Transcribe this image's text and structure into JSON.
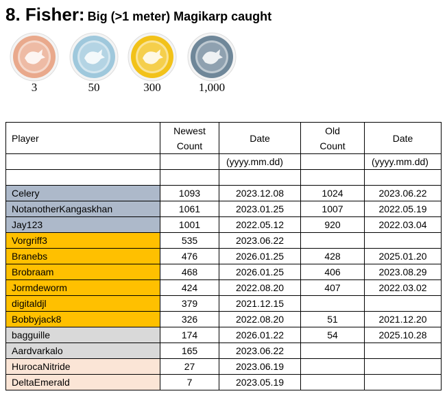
{
  "header": {
    "title": "8. Fisher:",
    "subtitle": "Big (>1 meter) Magikarp caught"
  },
  "medals": [
    {
      "label": "3",
      "color": "#e9a98c"
    },
    {
      "label": "50",
      "color": "#9fc8dc"
    },
    {
      "label": "300",
      "color": "#f2c21a"
    },
    {
      "label": "1,000",
      "color": "#6f8799"
    }
  ],
  "table": {
    "columns": [
      {
        "name": "Player"
      },
      {
        "name": "Newest Count"
      },
      {
        "name": "Date",
        "format": "(yyyy.mm.dd)"
      },
      {
        "name": "Old Count"
      },
      {
        "name": "Date",
        "format": "(yyyy.mm.dd)"
      }
    ],
    "rows": [
      {
        "color": "#adb9ca",
        "cells": [
          "Celery",
          1093,
          "2023.12.08",
          1024,
          "2023.06.22"
        ]
      },
      {
        "color": "#adb9ca",
        "cells": [
          "NotanotherKangaskhan",
          1061,
          "2023.01.25",
          1007,
          "2022.05.19"
        ]
      },
      {
        "color": "#adb9ca",
        "cells": [
          "Jay123",
          1001,
          "2022.05.12",
          920,
          "2022.03.04"
        ]
      },
      {
        "color": "#ffc000",
        "cells": [
          "Vorgriff3",
          535,
          "2023.06.22",
          null,
          null
        ]
      },
      {
        "color": "#ffc000",
        "cells": [
          "Branebs",
          476,
          "2026.01.25",
          428,
          "2025.01.20"
        ]
      },
      {
        "color": "#ffc000",
        "cells": [
          "Brobraam",
          468,
          "2026.01.25",
          406,
          "2023.08.29"
        ]
      },
      {
        "color": "#ffc000",
        "cells": [
          "Jormdeworm",
          424,
          "2022.08.20",
          407,
          "2022.03.02"
        ]
      },
      {
        "color": "#ffc000",
        "cells": [
          "digitaldjl",
          379,
          "2021.12.15",
          null,
          null
        ]
      },
      {
        "color": "#ffc000",
        "cells": [
          "Bobbyjack8",
          326,
          "2022.08.20",
          51,
          "2021.12.20"
        ]
      },
      {
        "color": "#d9d9d9",
        "cells": [
          "bagguille",
          174,
          "2026.01.22",
          54,
          "2025.10.28"
        ]
      },
      {
        "color": "#d9d9d9",
        "cells": [
          "Aardvarkalo",
          165,
          "2023.06.22",
          null,
          null
        ]
      },
      {
        "color": "#fbe5d6",
        "cells": [
          "HurocaNitride",
          27,
          "2023.06.19",
          null,
          null
        ]
      },
      {
        "color": "#fbe5d6",
        "cells": [
          "DeltaEmerald",
          7,
          "2023.05.19",
          null,
          null
        ]
      }
    ]
  }
}
